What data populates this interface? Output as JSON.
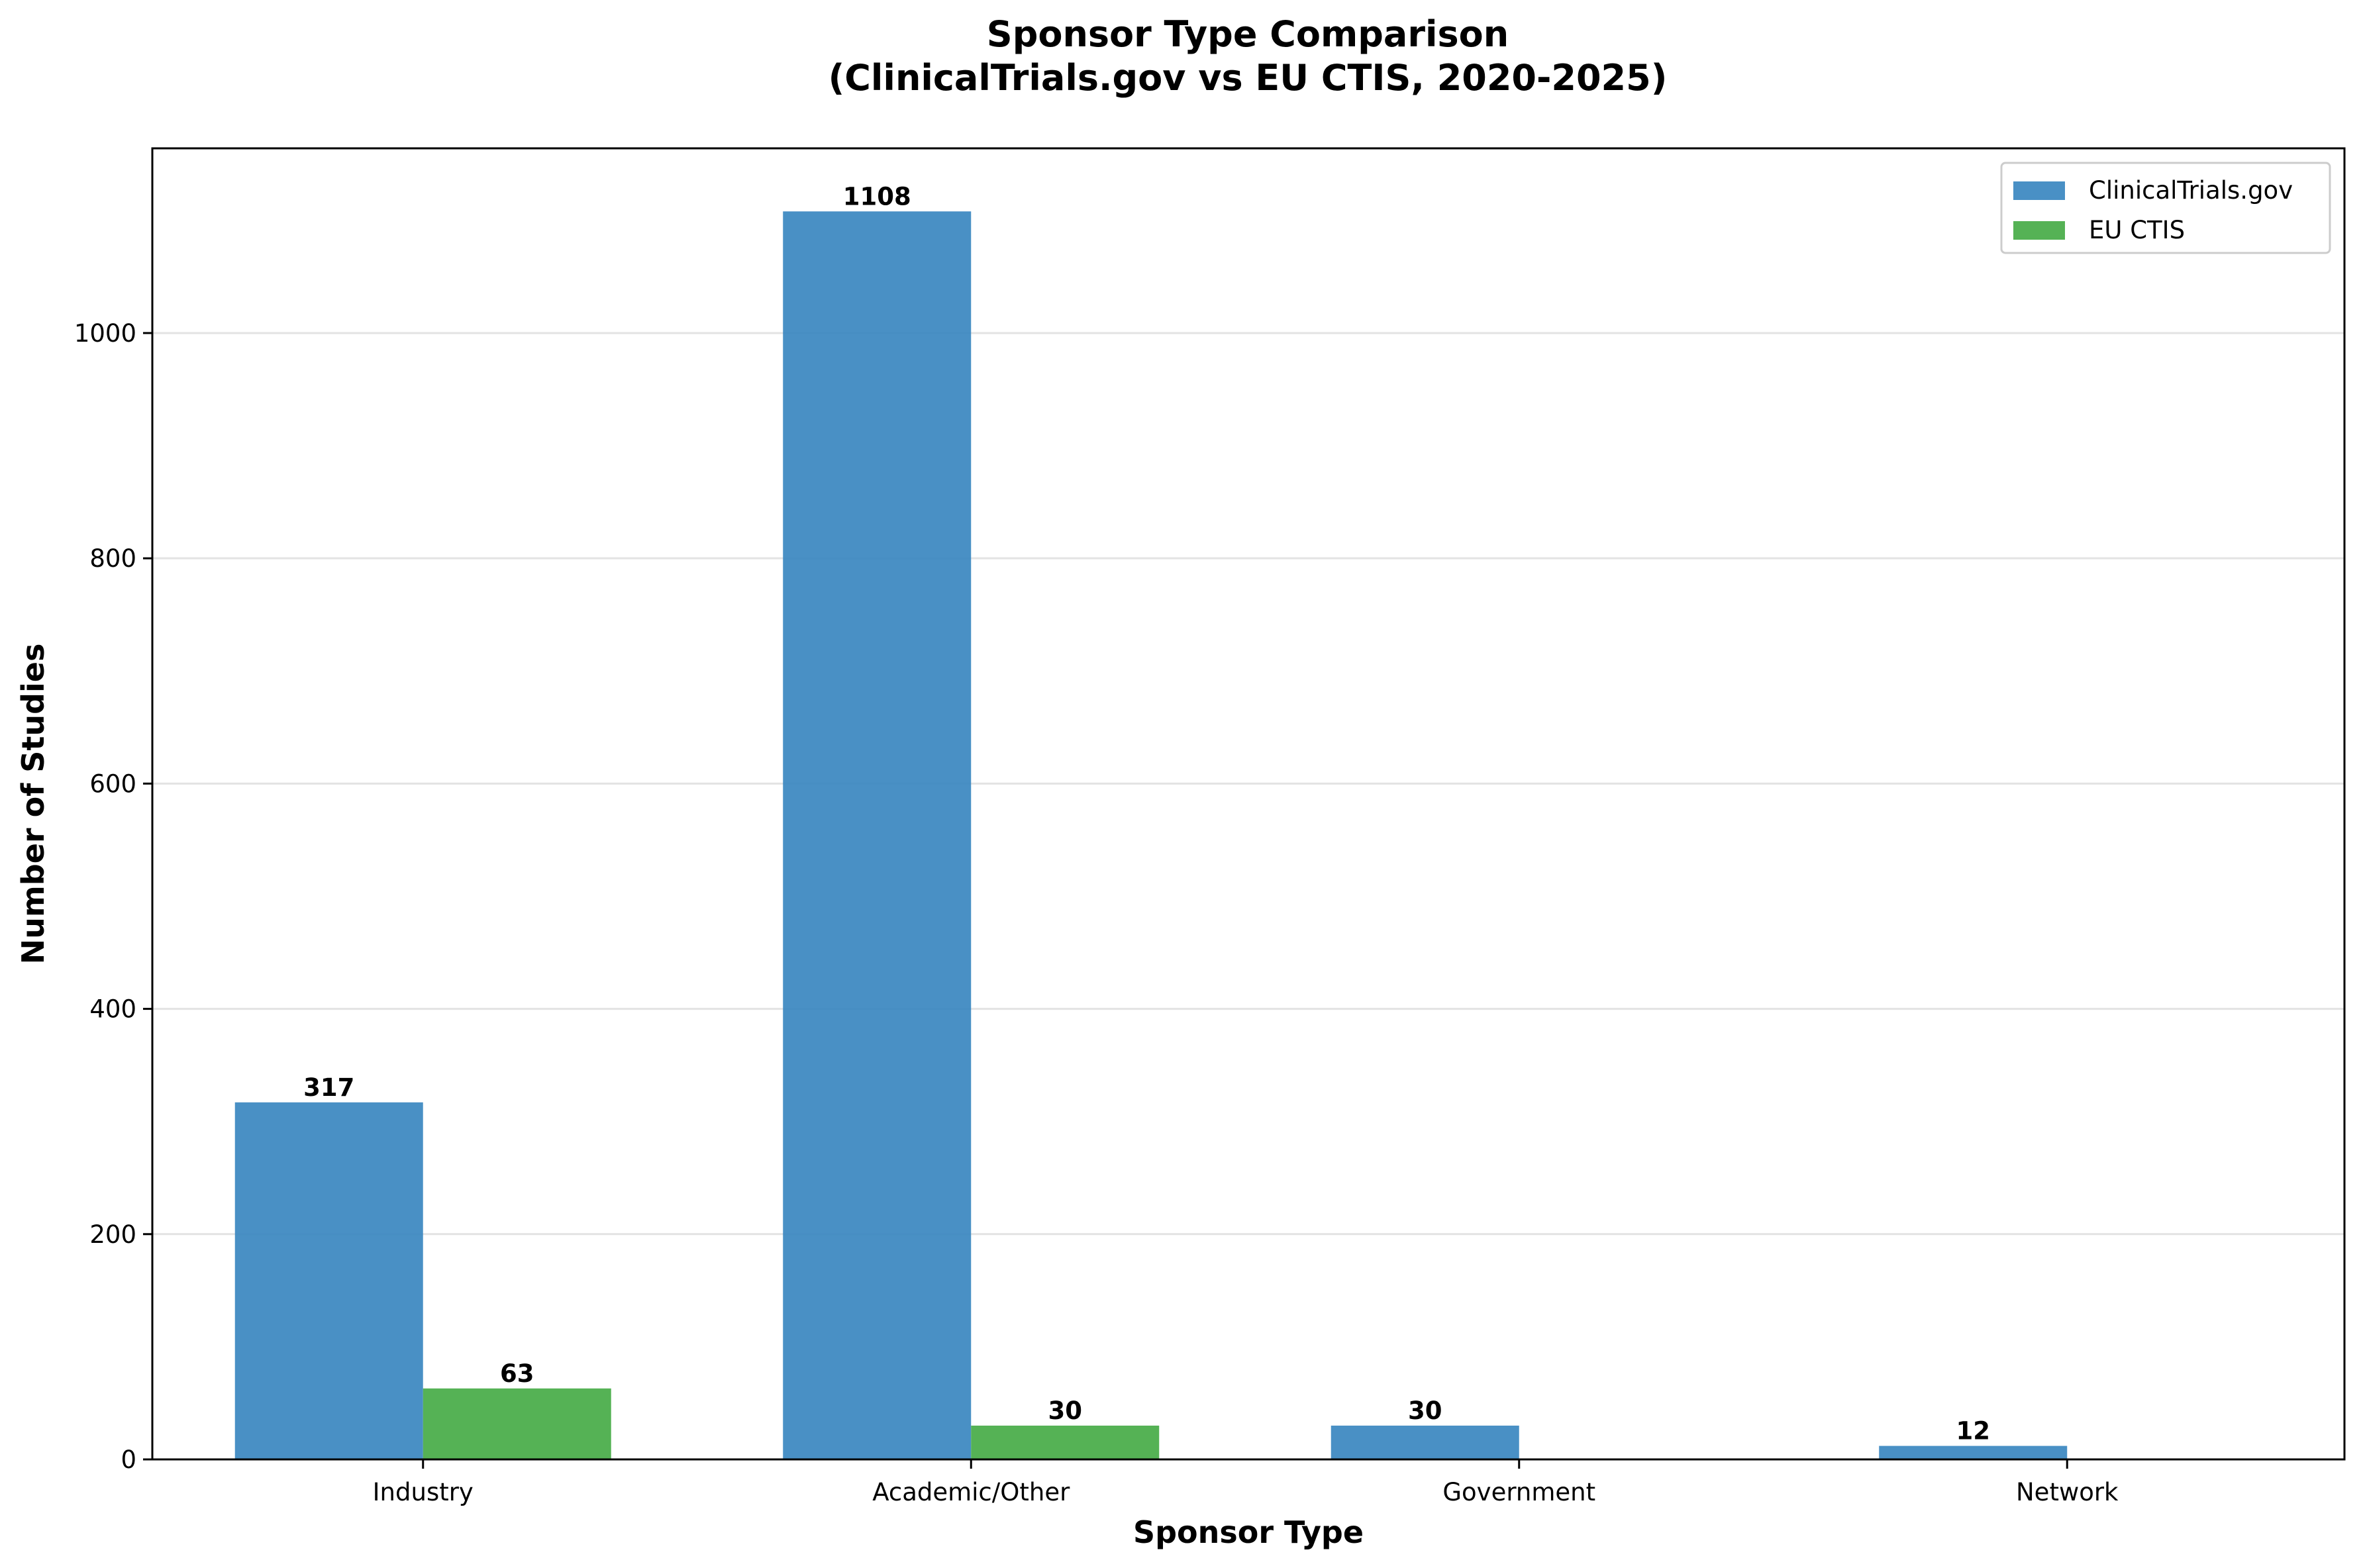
{
  "chart_data": {
    "type": "bar",
    "title": "Sponsor Type Comparison\n(ClinicalTrials.gov vs EU CTIS, 2020-2025)",
    "xlabel": "Sponsor Type",
    "ylabel": "Number of Studies",
    "categories": [
      "Industry",
      "Academic/Other",
      "Government",
      "Network"
    ],
    "series": [
      {
        "name": "ClinicalTrials.gov",
        "color": "#3a87c0",
        "values": [
          317,
          1108,
          30,
          12
        ]
      },
      {
        "name": "EU CTIS",
        "color": "#46ab46",
        "values": [
          63,
          30,
          0,
          0
        ]
      }
    ],
    "ylim": [
      0,
      1164
    ],
    "yticks": [
      0,
      200,
      400,
      600,
      800,
      1000
    ],
    "grid": "y",
    "legend_position": "top-right"
  }
}
